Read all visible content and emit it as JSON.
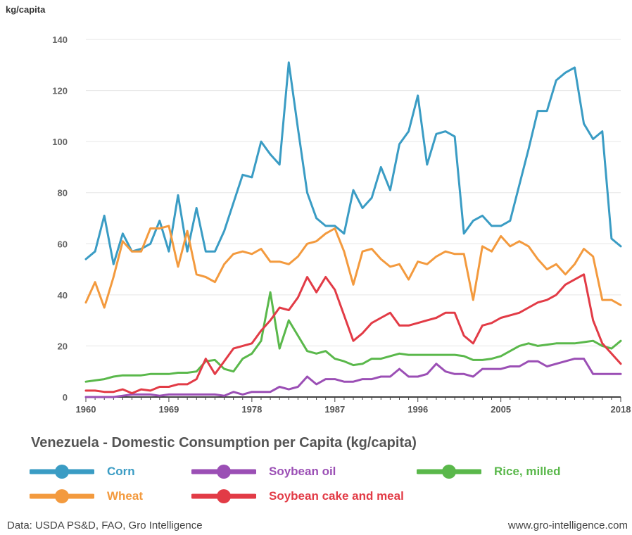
{
  "chart_data": {
    "type": "line",
    "title": "Venezuela - Domestic Consumption per Capita (kg/capita)",
    "ylabel": "kg/capita",
    "xlabel": "",
    "xlim": [
      1960,
      2018
    ],
    "ylim": [
      0,
      140
    ],
    "yticks": [
      0,
      20,
      40,
      60,
      80,
      100,
      120,
      140
    ],
    "xticks": [
      1960,
      1969,
      1978,
      1987,
      1996,
      2005,
      2018
    ],
    "grid": "horizontal",
    "legend_position": "bottom",
    "x": [
      1960,
      1961,
      1962,
      1963,
      1964,
      1965,
      1966,
      1967,
      1968,
      1969,
      1970,
      1971,
      1972,
      1973,
      1974,
      1975,
      1976,
      1977,
      1978,
      1979,
      1980,
      1981,
      1982,
      1983,
      1984,
      1985,
      1986,
      1987,
      1988,
      1989,
      1990,
      1991,
      1992,
      1993,
      1994,
      1995,
      1996,
      1997,
      1998,
      1999,
      2000,
      2001,
      2002,
      2003,
      2004,
      2005,
      2006,
      2007,
      2008,
      2009,
      2010,
      2011,
      2012,
      2013,
      2014,
      2015,
      2016,
      2017,
      2018
    ],
    "series": [
      {
        "name": "Corn",
        "color": "#3a9cc4",
        "values": [
          54,
          57,
          71,
          52,
          64,
          57,
          58,
          60,
          69,
          57,
          79,
          57,
          74,
          57,
          57,
          65,
          76,
          87,
          86,
          100,
          95,
          91,
          131,
          105,
          80,
          70,
          67,
          67,
          64,
          81,
          74,
          78,
          90,
          81,
          99,
          104,
          118,
          91,
          103,
          104,
          102,
          64,
          69,
          71,
          67,
          67,
          69,
          83,
          97,
          112,
          112,
          124,
          127,
          129,
          107,
          101,
          104,
          62,
          59
        ]
      },
      {
        "name": "Soybean oil",
        "color": "#9b4fb5",
        "values": [
          0,
          0,
          0,
          0,
          0.5,
          1,
          1,
          1,
          0.5,
          1,
          1,
          1,
          1,
          1,
          1,
          0.5,
          2,
          1,
          2,
          2,
          2,
          4,
          3,
          4,
          8,
          5,
          7,
          7,
          6,
          6,
          7,
          7,
          8,
          8,
          11,
          8,
          8,
          9,
          13,
          10,
          9,
          9,
          8,
          11,
          11,
          11,
          12,
          12,
          14,
          14,
          12,
          13,
          14,
          15,
          15,
          9,
          9,
          9,
          9
        ]
      },
      {
        "name": "Rice, milled",
        "color": "#5ab84b",
        "values": [
          6,
          6.5,
          7,
          8,
          8.5,
          8.5,
          8.5,
          9,
          9,
          9,
          9.5,
          9.5,
          10,
          14,
          14.5,
          11,
          10,
          15,
          17,
          22,
          41,
          19,
          30,
          24,
          18,
          17,
          18,
          15,
          14,
          12.5,
          13,
          15,
          15,
          16,
          17,
          16.5,
          16.5,
          16.5,
          16.5,
          16.5,
          16.5,
          16,
          14.5,
          14.5,
          15,
          16,
          18,
          20,
          21,
          20,
          20.5,
          21,
          21,
          21,
          21.5,
          22,
          20,
          19,
          22
        ]
      },
      {
        "name": "Wheat",
        "color": "#f39a3e",
        "values": [
          37,
          45,
          35,
          47,
          61,
          57,
          57,
          66,
          66,
          67,
          51,
          65,
          48,
          47,
          45,
          52,
          56,
          57,
          56,
          58,
          53,
          53,
          52,
          55,
          60,
          61,
          64,
          66,
          57,
          44,
          57,
          58,
          54,
          51,
          52,
          46,
          53,
          52,
          55,
          57,
          56,
          56,
          38,
          59,
          57,
          63,
          59,
          61,
          59,
          54,
          50,
          52,
          48,
          52,
          58,
          55,
          38,
          38,
          36
        ]
      },
      {
        "name": "Soybean cake and meal",
        "color": "#e23b46",
        "values": [
          2.5,
          2.5,
          2,
          2,
          3,
          1.5,
          3,
          2.5,
          4,
          4,
          5,
          5,
          7,
          15,
          9,
          14,
          19,
          20,
          21,
          26,
          30,
          35,
          34,
          39,
          47,
          41,
          47,
          42,
          32,
          22,
          25,
          29,
          31,
          33,
          28,
          28,
          29,
          30,
          31,
          33,
          33,
          24,
          21,
          28,
          29,
          31,
          32,
          33,
          35,
          37,
          38,
          40,
          44,
          46,
          48,
          30,
          21,
          17,
          13
        ]
      }
    ]
  },
  "legend": [
    {
      "label": "Corn",
      "color": "#3a9cc4"
    },
    {
      "label": "Soybean oil",
      "color": "#9b4fb5"
    },
    {
      "label": "Rice, milled",
      "color": "#5ab84b"
    },
    {
      "label": "Wheat",
      "color": "#f39a3e"
    },
    {
      "label": "Soybean cake and meal",
      "color": "#e23b46"
    }
  ],
  "footer": {
    "source": "Data: USDA PS&D, FAO, Gro Intelligence",
    "url": "www.gro-intelligence.com"
  }
}
